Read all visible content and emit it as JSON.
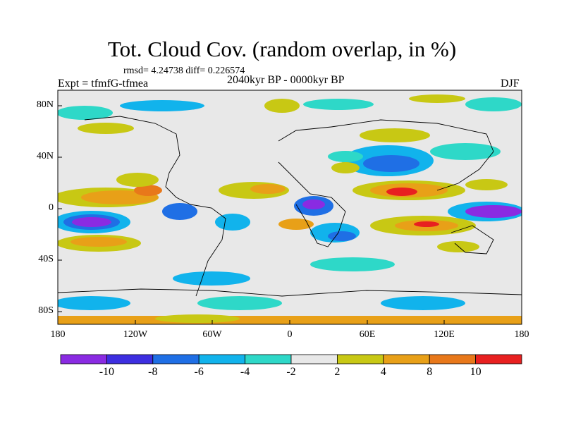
{
  "title": "Tot. Cloud Cov. (random overlap, in %)",
  "stats": "rmsd= 4.24738 diff= 0.226574",
  "expt": "Expt = tfmfG-tfmea",
  "period": "2040kyr BP - 0000kyr BP",
  "season": "DJF",
  "lat_labels": [
    "80N",
    "40N",
    "0",
    "40S",
    "80S"
  ],
  "lon_labels": [
    "180",
    "120W",
    "60W",
    "0",
    "60E",
    "120E",
    "180"
  ],
  "colorbar": {
    "labels": [
      "-10",
      "-8",
      "-6",
      "-4",
      "-2",
      "2",
      "4",
      "8",
      "10"
    ],
    "colors": [
      "#8a2be2",
      "#3d2ee0",
      "#1f6fe5",
      "#11b3ec",
      "#2ed8c8",
      "#e8e8e8",
      "#c8c814",
      "#e8a018",
      "#e8781a",
      "#e82020"
    ]
  }
}
